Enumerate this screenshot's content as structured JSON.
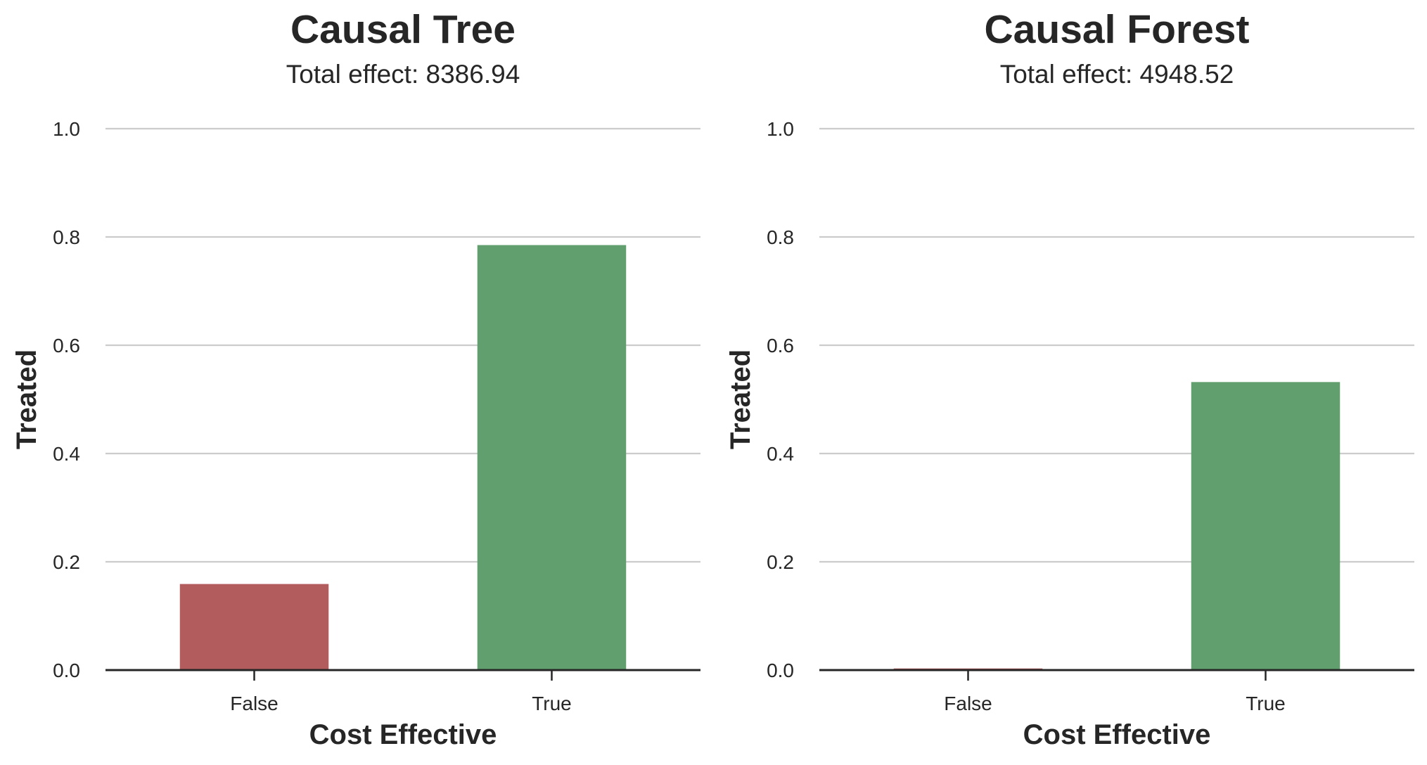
{
  "chart_data": [
    {
      "type": "bar",
      "title": "Causal Tree",
      "subtitle": "Total effect: 8386.94",
      "xlabel": "Cost Effective",
      "ylabel": "Treated",
      "categories": [
        "False",
        "True"
      ],
      "values": [
        0.159,
        0.785
      ],
      "colors": [
        "#b35c5e",
        "#61a06e"
      ],
      "ylim": [
        0,
        1.0
      ],
      "yticks": [
        "0.0",
        "0.2",
        "0.4",
        "0.6",
        "0.8",
        "1.0"
      ],
      "grid": true,
      "legend": "none"
    },
    {
      "type": "bar",
      "title": "Causal Forest",
      "subtitle": "Total effect: 4948.52",
      "xlabel": "Cost Effective",
      "ylabel": "Treated",
      "categories": [
        "False",
        "True"
      ],
      "values": [
        0.003,
        0.532
      ],
      "colors": [
        "#b35c5e",
        "#61a06e"
      ],
      "ylim": [
        0,
        1.0
      ],
      "yticks": [
        "0.0",
        "0.2",
        "0.4",
        "0.6",
        "0.8",
        "1.0"
      ],
      "grid": true,
      "legend": "none"
    }
  ]
}
